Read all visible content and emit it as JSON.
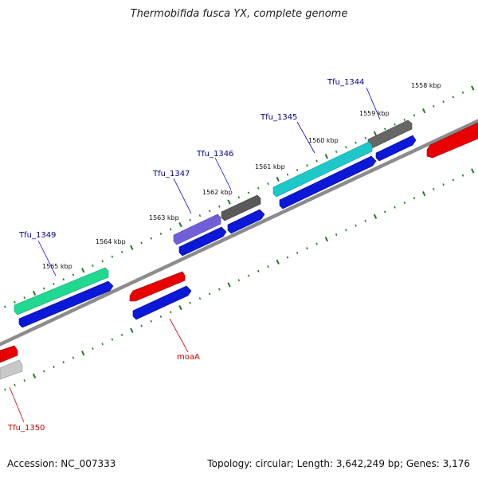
{
  "title": "Thermobifida fusca YX, complete genome",
  "footer": {
    "accession": "Accession: NC_007333",
    "summary": "Topology: circular; Length: 3,642,249 bp; Genes: 3,176"
  },
  "colors": {
    "backbone": "#8c8c8c",
    "ticks": "#1f7a1f",
    "cds_forward": "#0b18d8",
    "label_blue": "#00008b",
    "label_red": "#cc0000"
  },
  "ticks": [
    {
      "label": "1558 kbp"
    },
    {
      "label": "1559 kbp"
    },
    {
      "label": "1560 kbp"
    },
    {
      "label": "1561 kbp"
    },
    {
      "label": "1562 kbp"
    },
    {
      "label": "1563 kbp"
    },
    {
      "label": "1564 kbp"
    },
    {
      "label": "1565 kbp"
    }
  ],
  "genes": [
    {
      "label": "Tfu_1344",
      "color": "#666666",
      "label_color": "#00008b"
    },
    {
      "label": "Tfu_1345",
      "color": "#1ec8c8",
      "label_color": "#00008b"
    },
    {
      "label": "Tfu_1346",
      "color": "#5a5a5a",
      "label_color": "#00008b"
    },
    {
      "label": "Tfu_1347",
      "color": "#7060d8",
      "label_color": "#00008b"
    },
    {
      "label": "Tfu_1349",
      "color": "#20d890",
      "label_color": "#00008b"
    },
    {
      "label": "moaA",
      "color": "#e80000",
      "label_color": "#cc0000"
    },
    {
      "label": "Tfu_1350",
      "color": "#e80000",
      "label_color": "#cc0000"
    }
  ]
}
